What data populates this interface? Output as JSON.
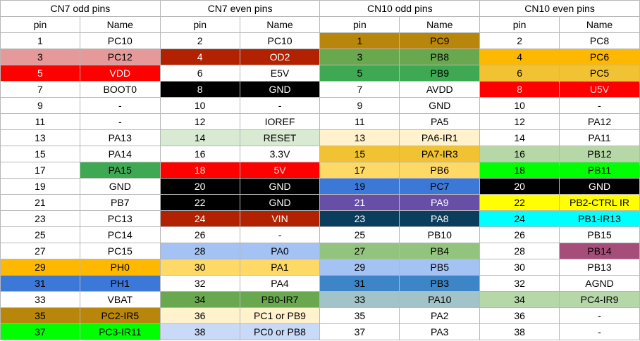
{
  "header": {
    "groups": [
      "CN7 odd pins",
      "CN7 even pins",
      "CN10 odd pins",
      "CN10 even pins"
    ],
    "subheaders": [
      "pin",
      "Name",
      "pin",
      "Name",
      "pin",
      "Name",
      "pin",
      "Name"
    ]
  },
  "colors": {
    "salmon": "#e69999",
    "dark_red": "#b32200",
    "red": "#ff0000",
    "black": "#000000",
    "olive": "#b8860b",
    "green": "#3ea853",
    "light_green": "#d9ead3",
    "bright_green": "#00ff00",
    "sage": "#b6d7a8",
    "mid_green": "#6aa84f",
    "soft_green": "#93c47d",
    "orange": "#ffb800",
    "amber": "#f1c232",
    "light_amber": "#ffd966",
    "cream": "#fff2cc",
    "yellow": "#ffff00",
    "blue": "#3c78d8",
    "light_blue": "#a4c2f4",
    "pale_blue": "#c9daf8",
    "steel_blue": "#3d85c6",
    "gray_blue": "#a2c4c9",
    "navy": "#0b3d5c",
    "purple": "#674ea7",
    "cyan": "#00ffff",
    "plum": "#a64d79",
    "white": "#ffffff"
  },
  "rows": [
    [
      {
        "t": "1"
      },
      {
        "t": "PC10"
      },
      {
        "t": "2"
      },
      {
        "t": "PC10"
      },
      {
        "t": "1",
        "bg": "#b8860b"
      },
      {
        "t": "PC9",
        "bg": "#b8860b"
      },
      {
        "t": "2"
      },
      {
        "t": "PC8"
      }
    ],
    [
      {
        "t": "3",
        "bg": "#e69999"
      },
      {
        "t": "PC12",
        "bg": "#e69999"
      },
      {
        "t": "4",
        "bg": "#b32200",
        "fg": "#ffffff"
      },
      {
        "t": "OD2",
        "bg": "#b32200",
        "fg": "#ffffff"
      },
      {
        "t": "3",
        "bg": "#6aa84f"
      },
      {
        "t": "PB8",
        "bg": "#6aa84f"
      },
      {
        "t": "4",
        "bg": "#ffb800"
      },
      {
        "t": "PC6",
        "bg": "#ffb800"
      }
    ],
    [
      {
        "t": "5",
        "bg": "#ff0000",
        "fg": "#ffffff"
      },
      {
        "t": "VDD",
        "bg": "#ff0000",
        "fg": "#ffffff"
      },
      {
        "t": "6"
      },
      {
        "t": "E5V"
      },
      {
        "t": "5",
        "bg": "#3ea853"
      },
      {
        "t": "PB9",
        "bg": "#3ea853"
      },
      {
        "t": "6",
        "bg": "#f1c232"
      },
      {
        "t": "PC5",
        "bg": "#f1c232"
      }
    ],
    [
      {
        "t": "7"
      },
      {
        "t": "BOOT0"
      },
      {
        "t": "8",
        "bg": "#000000",
        "fg": "#ffffff"
      },
      {
        "t": "GND",
        "bg": "#000000",
        "fg": "#ffffff"
      },
      {
        "t": "7"
      },
      {
        "t": "AVDD"
      },
      {
        "t": "8",
        "bg": "#ff0000",
        "fg": "#ffd5d5"
      },
      {
        "t": "U5V",
        "bg": "#ff0000",
        "fg": "#ffd5d5"
      }
    ],
    [
      {
        "t": "9"
      },
      {
        "t": "-"
      },
      {
        "t": "10"
      },
      {
        "t": "-"
      },
      {
        "t": "9"
      },
      {
        "t": "GND"
      },
      {
        "t": "10"
      },
      {
        "t": "-"
      }
    ],
    [
      {
        "t": "11"
      },
      {
        "t": "-"
      },
      {
        "t": "12"
      },
      {
        "t": "IOREF"
      },
      {
        "t": "11"
      },
      {
        "t": "PA5"
      },
      {
        "t": "12"
      },
      {
        "t": "PA12"
      }
    ],
    [
      {
        "t": "13"
      },
      {
        "t": "PA13"
      },
      {
        "t": "14",
        "bg": "#d9ead3"
      },
      {
        "t": "RESET",
        "bg": "#d9ead3"
      },
      {
        "t": "13",
        "bg": "#fff2cc"
      },
      {
        "t": "PA6-IR1",
        "bg": "#fff2cc"
      },
      {
        "t": "14"
      },
      {
        "t": "PA11"
      }
    ],
    [
      {
        "t": "15"
      },
      {
        "t": "PA14"
      },
      {
        "t": "16"
      },
      {
        "t": "3.3V"
      },
      {
        "t": "15",
        "bg": "#f1c232"
      },
      {
        "t": "PA7-IR3",
        "bg": "#f1c232"
      },
      {
        "t": "16",
        "bg": "#b6d7a8"
      },
      {
        "t": "PB12",
        "bg": "#b6d7a8"
      }
    ],
    [
      {
        "t": "17"
      },
      {
        "t": "PA15",
        "bg": "#3ea853"
      },
      {
        "t": "18",
        "bg": "#ff0000",
        "fg": "#ffd5d5"
      },
      {
        "t": "5V",
        "bg": "#ff0000",
        "fg": "#ffd5d5"
      },
      {
        "t": "17",
        "bg": "#ffd966"
      },
      {
        "t": "PB6",
        "bg": "#ffd966"
      },
      {
        "t": "18",
        "bg": "#00ff00"
      },
      {
        "t": "PB11",
        "bg": "#00ff00"
      }
    ],
    [
      {
        "t": "19"
      },
      {
        "t": "GND"
      },
      {
        "t": "20",
        "bg": "#000000",
        "fg": "#ffffff"
      },
      {
        "t": "GND",
        "bg": "#000000",
        "fg": "#ffffff"
      },
      {
        "t": "19",
        "bg": "#3c78d8"
      },
      {
        "t": "PC7",
        "bg": "#3c78d8"
      },
      {
        "t": "20",
        "bg": "#000000",
        "fg": "#ffffff"
      },
      {
        "t": "GND",
        "bg": "#000000",
        "fg": "#ffffff"
      }
    ],
    [
      {
        "t": "21"
      },
      {
        "t": "PB7"
      },
      {
        "t": "22",
        "bg": "#000000",
        "fg": "#ffffff"
      },
      {
        "t": "GND",
        "bg": "#000000",
        "fg": "#ffffff"
      },
      {
        "t": "21",
        "bg": "#674ea7",
        "fg": "#ffffff"
      },
      {
        "t": "PA9",
        "bg": "#674ea7",
        "fg": "#ffffff"
      },
      {
        "t": "22",
        "bg": "#ffff00"
      },
      {
        "t": "PB2-CTRL IR",
        "bg": "#ffff00"
      }
    ],
    [
      {
        "t": "23"
      },
      {
        "t": "PC13"
      },
      {
        "t": "24",
        "bg": "#b32200",
        "fg": "#ffffff"
      },
      {
        "t": "VIN",
        "bg": "#b32200",
        "fg": "#ffffff"
      },
      {
        "t": "23",
        "bg": "#0b3d5c",
        "fg": "#ffffff"
      },
      {
        "t": "PA8",
        "bg": "#0b3d5c",
        "fg": "#ffffff"
      },
      {
        "t": "24",
        "bg": "#00ffff"
      },
      {
        "t": "PB1-IR13",
        "bg": "#00ffff"
      }
    ],
    [
      {
        "t": "25"
      },
      {
        "t": "PC14"
      },
      {
        "t": "26"
      },
      {
        "t": "-"
      },
      {
        "t": "25"
      },
      {
        "t": "PB10"
      },
      {
        "t": "26"
      },
      {
        "t": "PB15"
      }
    ],
    [
      {
        "t": "27"
      },
      {
        "t": "PC15"
      },
      {
        "t": "28",
        "bg": "#a4c2f4"
      },
      {
        "t": "PA0",
        "bg": "#a4c2f4"
      },
      {
        "t": "27",
        "bg": "#93c47d"
      },
      {
        "t": "PB4",
        "bg": "#93c47d"
      },
      {
        "t": "28"
      },
      {
        "t": "PB14",
        "bg": "#a64d79"
      }
    ],
    [
      {
        "t": "29",
        "bg": "#ffb800"
      },
      {
        "t": "PH0",
        "bg": "#ffb800"
      },
      {
        "t": "30",
        "bg": "#ffd966"
      },
      {
        "t": "PA1",
        "bg": "#ffd966"
      },
      {
        "t": "29",
        "bg": "#a4c2f4"
      },
      {
        "t": "PB5",
        "bg": "#a4c2f4"
      },
      {
        "t": "30"
      },
      {
        "t": "PB13"
      }
    ],
    [
      {
        "t": "31",
        "bg": "#3c78d8"
      },
      {
        "t": "PH1",
        "bg": "#3c78d8"
      },
      {
        "t": "32"
      },
      {
        "t": "PA4"
      },
      {
        "t": "31",
        "bg": "#3d85c6"
      },
      {
        "t": "PB3",
        "bg": "#3d85c6"
      },
      {
        "t": "32"
      },
      {
        "t": "AGND"
      }
    ],
    [
      {
        "t": "33"
      },
      {
        "t": "VBAT"
      },
      {
        "t": "34",
        "bg": "#6aa84f"
      },
      {
        "t": "PB0-IR7",
        "bg": "#6aa84f"
      },
      {
        "t": "33",
        "bg": "#a2c4c9"
      },
      {
        "t": "PA10",
        "bg": "#a2c4c9"
      },
      {
        "t": "34",
        "bg": "#b6d7a8"
      },
      {
        "t": "PC4-IR9",
        "bg": "#b6d7a8"
      }
    ],
    [
      {
        "t": "35",
        "bg": "#b8860b"
      },
      {
        "t": "PC2-IR5",
        "bg": "#b8860b"
      },
      {
        "t": "36",
        "bg": "#fff2cc"
      },
      {
        "t": "PC1 or PB9",
        "bg": "#fff2cc"
      },
      {
        "t": "35"
      },
      {
        "t": "PA2"
      },
      {
        "t": "36"
      },
      {
        "t": "-"
      }
    ],
    [
      {
        "t": "37",
        "bg": "#00ff00"
      },
      {
        "t": "PC3-IR11",
        "bg": "#00ff00"
      },
      {
        "t": "38",
        "bg": "#c9daf8"
      },
      {
        "t": "PC0 or PB8",
        "bg": "#c9daf8"
      },
      {
        "t": "37"
      },
      {
        "t": "PA3"
      },
      {
        "t": "38"
      },
      {
        "t": "-"
      }
    ]
  ]
}
